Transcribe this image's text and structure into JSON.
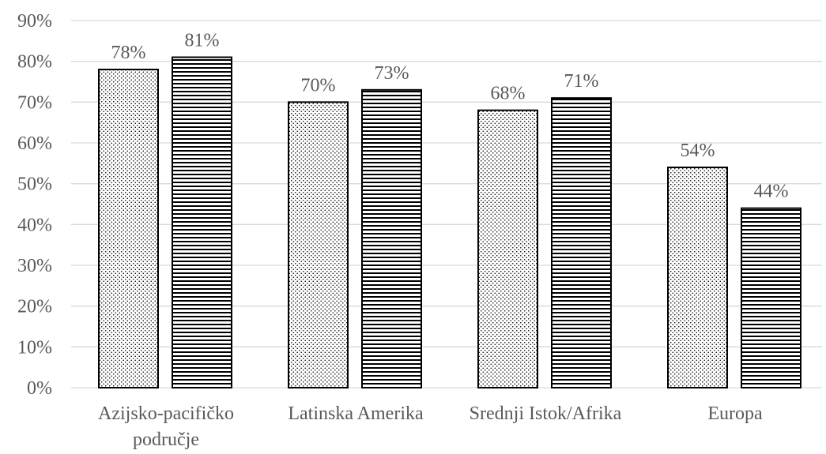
{
  "chart_data": {
    "type": "bar",
    "categories": [
      [
        "Azijsko-pacifičko",
        "područje"
      ],
      [
        "Latinska Amerika"
      ],
      [
        "Srednji Istok/Afrika"
      ],
      [
        "Europa"
      ]
    ],
    "series": [
      {
        "values": [
          78,
          70,
          68,
          54
        ],
        "pattern": "dots"
      },
      {
        "values": [
          81,
          73,
          71,
          44
        ],
        "pattern": "horizontal-stripes"
      }
    ],
    "data_labels": [
      [
        "78%",
        "70%",
        "68%",
        "54%"
      ],
      [
        "81%",
        "73%",
        "71%",
        "44%"
      ]
    ],
    "y_ticks": [
      "0%",
      "10%",
      "20%",
      "30%",
      "40%",
      "50%",
      "60%",
      "70%",
      "80%",
      "90%"
    ],
    "ylim": [
      0,
      90
    ],
    "grid": true,
    "legend": "none",
    "title": "",
    "xlabel": "",
    "ylabel": ""
  },
  "colors": {
    "gridline": "#d9d9d9",
    "bar_outline": "#000000",
    "text": "#595959"
  }
}
